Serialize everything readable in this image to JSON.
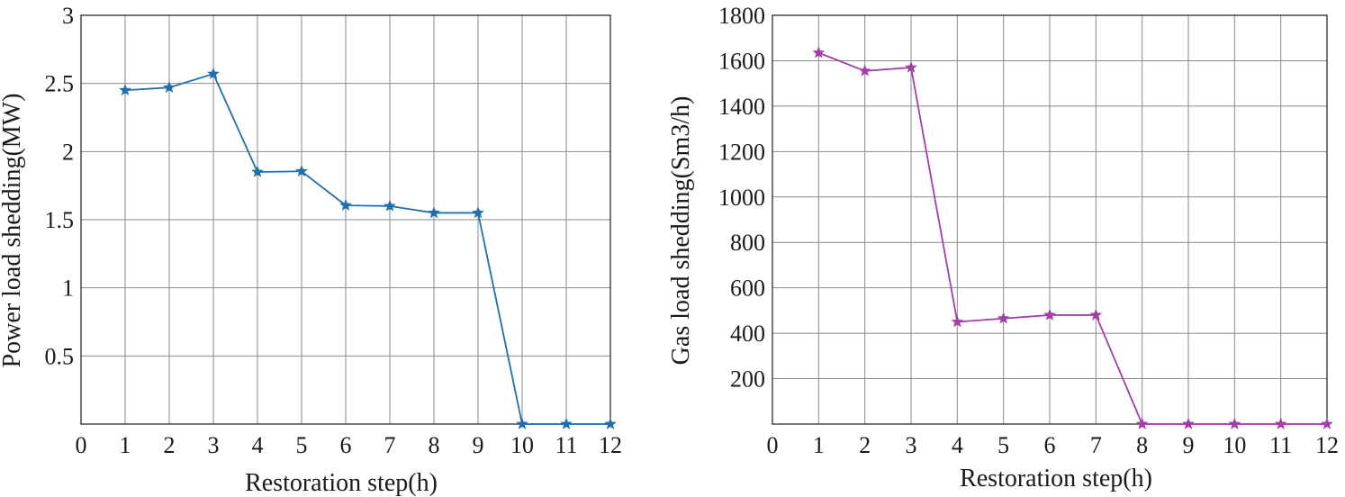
{
  "chart_data": [
    {
      "type": "line",
      "xlabel": "Restoration step(h)",
      "ylabel": "Power load shedding(MW)",
      "xlim": [
        0,
        12
      ],
      "ylim": [
        0,
        3
      ],
      "x_ticks": [
        0,
        1,
        2,
        3,
        4,
        5,
        6,
        7,
        8,
        9,
        10,
        11,
        12
      ],
      "y_ticks": [
        0.5,
        1,
        1.5,
        2,
        2.5,
        3
      ],
      "x_tick_labels": [
        "0",
        "1",
        "2",
        "3",
        "4",
        "5",
        "6",
        "7",
        "8",
        "9",
        "10",
        "11",
        "12"
      ],
      "y_tick_labels": [
        "0.5",
        "1",
        "1.5",
        "2",
        "2.5",
        "3"
      ],
      "grid": true,
      "color": "#1f6fad",
      "marker": "star",
      "series": [
        {
          "x": [
            1,
            2,
            3,
            4,
            5,
            6,
            7,
            8,
            9,
            10,
            11,
            12
          ],
          "values": [
            2.45,
            2.47,
            2.57,
            1.85,
            1.855,
            1.605,
            1.6,
            1.55,
            1.55,
            0,
            0,
            0
          ]
        }
      ]
    },
    {
      "type": "line",
      "xlabel": "Restoration step(h)",
      "ylabel": "Gas load shedding(Sm3/h)",
      "xlim": [
        0,
        12
      ],
      "ylim": [
        0,
        1800
      ],
      "x_ticks": [
        0,
        1,
        2,
        3,
        4,
        5,
        6,
        7,
        8,
        9,
        10,
        11,
        12
      ],
      "y_ticks": [
        200,
        400,
        600,
        800,
        1000,
        1200,
        1400,
        1600,
        1800
      ],
      "x_tick_labels": [
        "0",
        "1",
        "2",
        "3",
        "4",
        "5",
        "6",
        "7",
        "8",
        "9",
        "10",
        "11",
        "12"
      ],
      "y_tick_labels": [
        "200",
        "400",
        "600",
        "800",
        "1000",
        "1200",
        "1400",
        "1600",
        "1800"
      ],
      "grid": true,
      "color": "#a23ea6",
      "marker": "star",
      "series": [
        {
          "x": [
            1,
            2,
            3,
            4,
            5,
            6,
            7,
            8,
            9,
            10,
            11,
            12
          ],
          "values": [
            1635,
            1555,
            1570,
            450,
            465,
            480,
            480,
            0,
            0,
            0,
            0,
            0
          ]
        }
      ]
    }
  ]
}
